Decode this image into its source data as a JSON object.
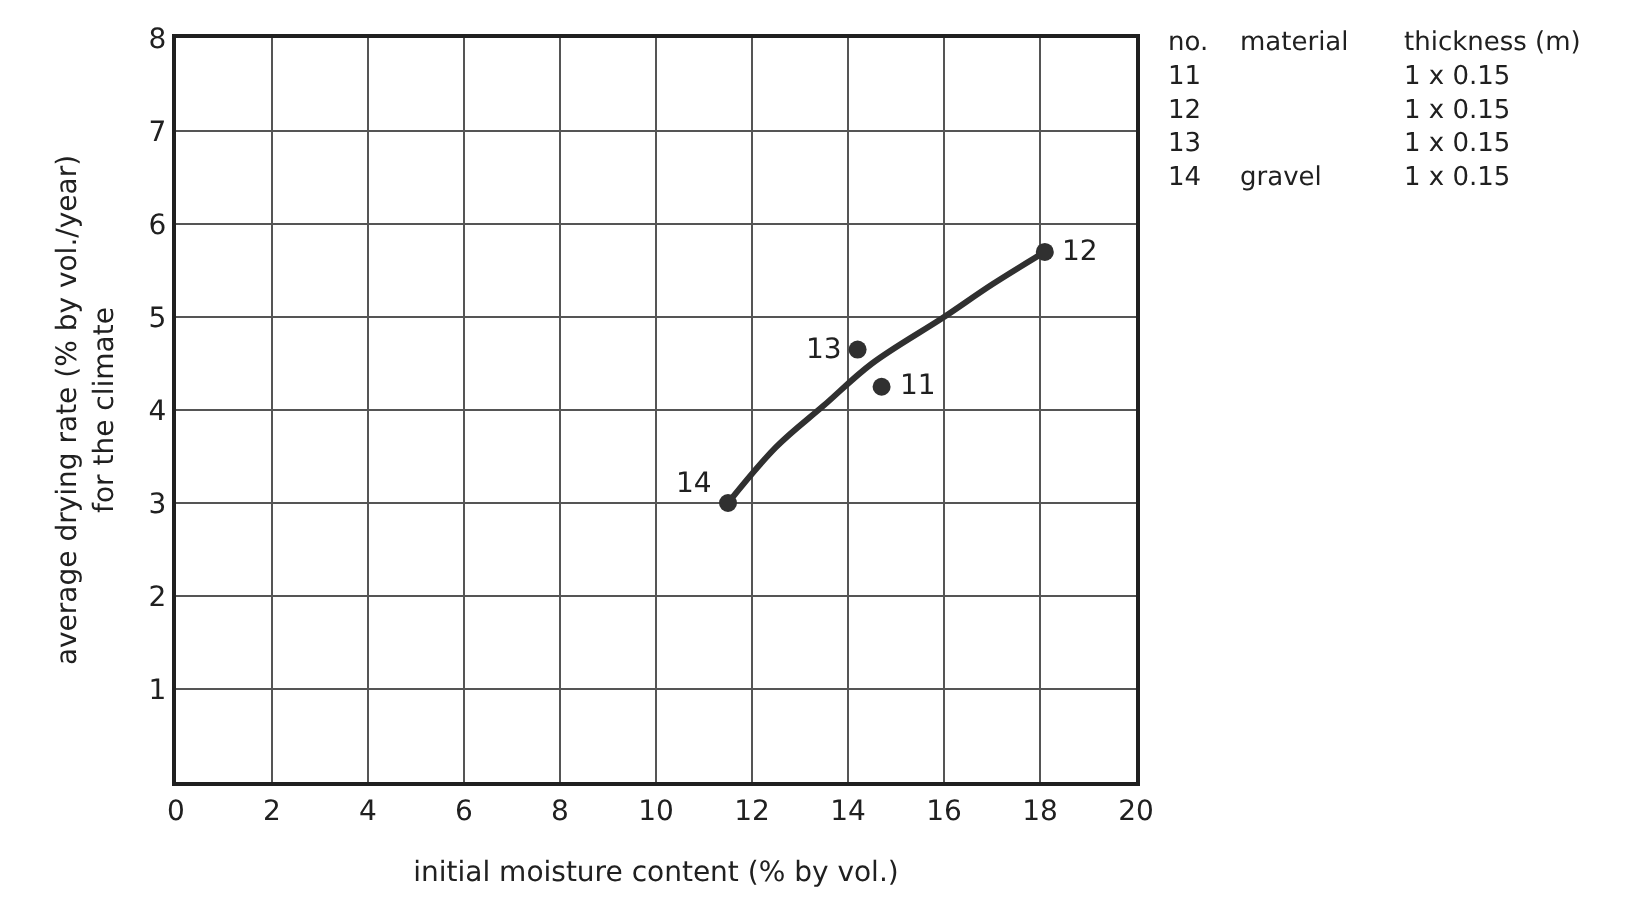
{
  "chart_data": {
    "type": "scatter",
    "xlabel": "initial moisture content (% by vol.)",
    "ylabel": "average drying rate (% by vol./year)\nfor the climate",
    "xlim": [
      0,
      20
    ],
    "ylim": [
      0,
      8
    ],
    "xticks": [
      0,
      2,
      4,
      6,
      8,
      10,
      12,
      14,
      16,
      18,
      20
    ],
    "yticks": [
      {
        "value": 0,
        "label": null
      },
      1,
      2,
      3,
      4,
      5,
      6,
      7,
      8
    ],
    "grid": true,
    "series": [
      {
        "type": "line",
        "x": [
          11.5,
          12.5,
          13.5,
          14.5,
          16,
          17,
          18.1
        ],
        "values": [
          3.0,
          3.6,
          4.05,
          4.5,
          5.0,
          5.35,
          5.7
        ],
        "color": "#303030",
        "line_style": "solid",
        "marker": "none"
      },
      {
        "x": [
          14.7,
          18.1,
          14.2,
          11.5
        ],
        "values": [
          4.25,
          5.7,
          4.65,
          3.0
        ],
        "color": "#303030",
        "marker": "circle"
      }
    ],
    "annotations": [
      {
        "text": "11",
        "x": 14.7,
        "y": 4.25
      },
      {
        "text": "12",
        "x": 18.1,
        "y": 5.7
      },
      {
        "text": "13",
        "x": 14.2,
        "y": 4.65
      },
      {
        "text": "14",
        "x": 11.5,
        "y": 3.0
      },
      "no.\n11\n12\n13\n14",
      "material\n\n\n\ngravel",
      "thickness (m)\n1 x 0.15\n1 x 0.15\n1 x 0.15\n1 x 0.15"
    ]
  }
}
